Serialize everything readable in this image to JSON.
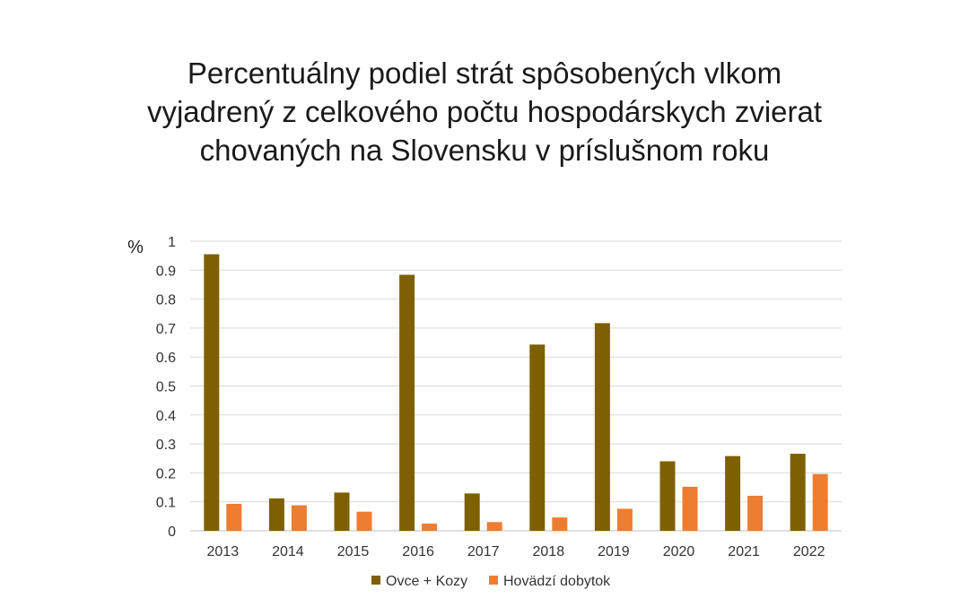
{
  "chart_data": {
    "type": "bar",
    "title": "Percentuálny podiel strát spôsobených vlkom\nvyjadrený z celkového počtu hospodárskych zvierat\nchovaných na Slovensku v príslušnom roku",
    "ylabel": "%",
    "xlabel": "",
    "categories": [
      "2013",
      "2014",
      "2015",
      "2016",
      "2017",
      "2018",
      "2019",
      "2020",
      "2021",
      "2022"
    ],
    "series": [
      {
        "name": "Ovce + Kozy",
        "color": "#7f6000",
        "values": [
          0.955,
          0.112,
          0.132,
          0.884,
          0.129,
          0.643,
          0.717,
          0.24,
          0.258,
          0.266
        ]
      },
      {
        "name": "Hovädzí dobytok",
        "color": "#ed7d31",
        "values": [
          0.093,
          0.088,
          0.066,
          0.025,
          0.03,
          0.046,
          0.076,
          0.152,
          0.121,
          0.196
        ]
      }
    ],
    "ylim": [
      0,
      1
    ],
    "yticks": [
      "0",
      "0.1",
      "0.2",
      "0.3",
      "0.4",
      "0.5",
      "0.6",
      "0.7",
      "0.8",
      "0.9",
      "1"
    ],
    "grid": true,
    "legend_position": "bottom"
  }
}
